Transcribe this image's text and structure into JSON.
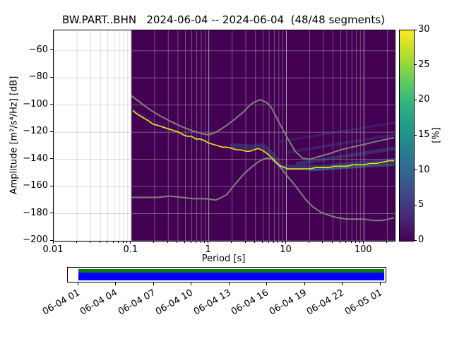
{
  "title": "BW.PART..BHN   2024-06-04 -- 2024-06-04  (48/48 segments)",
  "axes": {
    "xlabel": "Period [s]",
    "ylabel": "Amplitude [m²/s⁴/Hz] [dB]",
    "xticks": [
      {
        "value": 0.01,
        "label": "0.01"
      },
      {
        "value": 0.1,
        "label": "0.1"
      },
      {
        "value": 1,
        "label": "1"
      },
      {
        "value": 10,
        "label": "10"
      },
      {
        "value": 100,
        "label": "100"
      }
    ],
    "yticks": [
      {
        "value": -60,
        "label": "−60"
      },
      {
        "value": -80,
        "label": "−80"
      },
      {
        "value": -100,
        "label": "−100"
      },
      {
        "value": -120,
        "label": "−120"
      },
      {
        "value": -140,
        "label": "−140"
      },
      {
        "value": -160,
        "label": "−160"
      },
      {
        "value": -180,
        "label": "−180"
      },
      {
        "value": -200,
        "label": "−200"
      }
    ]
  },
  "colorbar": {
    "label": "[%]",
    "min": 0,
    "max": 30,
    "ticks": [
      0,
      5,
      10,
      15,
      20,
      25,
      30
    ],
    "colormap": "viridis",
    "stops": [
      "#440154",
      "#482878",
      "#3e4989",
      "#31688e",
      "#26828e",
      "#1f9e89",
      "#35b779",
      "#6ece58",
      "#b5de2b",
      "#fde725"
    ]
  },
  "chart_data": {
    "type": "heatmap",
    "title": "BW.PART..BHN   2024-06-04 -- 2024-06-04  (48/48 segments)",
    "xlabel": "Period [s]",
    "ylabel": "Amplitude [m²/s⁴/Hz] [dB]",
    "x_scale": "log",
    "xlim": [
      0.01,
      250
    ],
    "ylim": [
      -200,
      -45
    ],
    "probability_range_percent": [
      0,
      30
    ],
    "data_period_range": [
      0.1,
      250
    ],
    "background_color": "#440154",
    "grid": true,
    "mode_curve": {
      "name": "PSD mode (highest probability)",
      "color": "#f5e21d",
      "points": [
        [
          0.105,
          -104
        ],
        [
          0.115,
          -106
        ],
        [
          0.13,
          -108
        ],
        [
          0.15,
          -110
        ],
        [
          0.17,
          -112
        ],
        [
          0.19,
          -114
        ],
        [
          0.22,
          -115
        ],
        [
          0.25,
          -116
        ],
        [
          0.28,
          -117
        ],
        [
          0.32,
          -118
        ],
        [
          0.36,
          -119
        ],
        [
          0.41,
          -120
        ],
        [
          0.47,
          -122
        ],
        [
          0.53,
          -123
        ],
        [
          0.6,
          -123
        ],
        [
          0.68,
          -125
        ],
        [
          0.77,
          -125
        ],
        [
          0.87,
          -126
        ],
        [
          1.0,
          -128
        ],
        [
          1.15,
          -129
        ],
        [
          1.3,
          -130
        ],
        [
          1.5,
          -131
        ],
        [
          1.7,
          -131
        ],
        [
          2.0,
          -132
        ],
        [
          2.3,
          -133
        ],
        [
          2.6,
          -133
        ],
        [
          3.0,
          -134
        ],
        [
          3.4,
          -134
        ],
        [
          3.8,
          -133
        ],
        [
          4.3,
          -132
        ],
        [
          4.8,
          -133
        ],
        [
          5.4,
          -135
        ],
        [
          6.0,
          -137
        ],
        [
          6.8,
          -140
        ],
        [
          7.6,
          -143
        ],
        [
          8.5,
          -145
        ],
        [
          9.5,
          -146
        ],
        [
          10.5,
          -147
        ],
        [
          12,
          -147
        ],
        [
          14,
          -147
        ],
        [
          17,
          -147
        ],
        [
          20,
          -147
        ],
        [
          24,
          -146
        ],
        [
          29,
          -146
        ],
        [
          35,
          -146
        ],
        [
          42,
          -145
        ],
        [
          50,
          -145
        ],
        [
          60,
          -145
        ],
        [
          72,
          -144
        ],
        [
          86,
          -144
        ],
        [
          100,
          -144
        ],
        [
          120,
          -143
        ],
        [
          145,
          -143
        ],
        [
          175,
          -142
        ],
        [
          210,
          -141
        ],
        [
          245,
          -141
        ]
      ]
    },
    "noise_models": [
      {
        "name": "NHNM",
        "color": "#808080",
        "points": [
          [
            0.1,
            -93
          ],
          [
            0.13,
            -98
          ],
          [
            0.17,
            -103
          ],
          [
            0.22,
            -107
          ],
          [
            0.32,
            -112
          ],
          [
            0.45,
            -116
          ],
          [
            0.62,
            -119
          ],
          [
            0.8,
            -121
          ],
          [
            1.0,
            -122
          ],
          [
            1.24,
            -120
          ],
          [
            1.7,
            -115
          ],
          [
            2.2,
            -110
          ],
          [
            2.8,
            -105
          ],
          [
            3.4,
            -100
          ],
          [
            3.8,
            -98
          ],
          [
            4.6,
            -96
          ],
          [
            5.5,
            -98
          ],
          [
            6.3,
            -101
          ],
          [
            7.0,
            -106
          ],
          [
            7.9,
            -112
          ],
          [
            9.0,
            -118
          ],
          [
            11,
            -127
          ],
          [
            13,
            -134
          ],
          [
            16,
            -139
          ],
          [
            20,
            -140
          ],
          [
            26,
            -138
          ],
          [
            35,
            -136
          ],
          [
            50,
            -133
          ],
          [
            70,
            -131
          ],
          [
            100,
            -129
          ],
          [
            140,
            -127
          ],
          [
            200,
            -125
          ],
          [
            245,
            -124
          ]
        ]
      },
      {
        "name": "NLNM",
        "color": "#808080",
        "points": [
          [
            0.1,
            -168
          ],
          [
            0.15,
            -168
          ],
          [
            0.22,
            -168
          ],
          [
            0.32,
            -167
          ],
          [
            0.45,
            -168
          ],
          [
            0.65,
            -169
          ],
          [
            0.9,
            -169
          ],
          [
            1.24,
            -170
          ],
          [
            1.7,
            -166
          ],
          [
            2.2,
            -158
          ],
          [
            2.8,
            -151
          ],
          [
            3.5,
            -146
          ],
          [
            4.3,
            -142
          ],
          [
            5.0,
            -140
          ],
          [
            5.8,
            -139
          ],
          [
            6.5,
            -140
          ],
          [
            7.5,
            -143
          ],
          [
            9,
            -148
          ],
          [
            10.5,
            -153
          ],
          [
            12.5,
            -158
          ],
          [
            15,
            -164
          ],
          [
            18,
            -170
          ],
          [
            22,
            -175
          ],
          [
            28,
            -179
          ],
          [
            35,
            -181
          ],
          [
            45,
            -183
          ],
          [
            60,
            -184
          ],
          [
            80,
            -184
          ],
          [
            100,
            -184
          ],
          [
            130,
            -185
          ],
          [
            170,
            -185
          ],
          [
            210,
            -184
          ],
          [
            245,
            -183
          ]
        ]
      }
    ],
    "probability_streaks": [
      {
        "points": [
          [
            0.105,
            -104
          ],
          [
            0.3,
            -118
          ],
          [
            1,
            -128
          ]
        ],
        "color": "#31688e",
        "opacity": 0.2,
        "width": 5
      },
      {
        "points": [
          [
            2,
            -130
          ],
          [
            3.5,
            -131
          ],
          [
            5,
            -130
          ],
          [
            6.5,
            -136
          ],
          [
            8,
            -143
          ]
        ],
        "color": "#31688e",
        "opacity": 0.4,
        "width": 7
      },
      {
        "points": [
          [
            9,
            -146
          ],
          [
            30,
            -146
          ],
          [
            100,
            -143
          ],
          [
            245,
            -141
          ]
        ],
        "color": "#31688e",
        "opacity": 0.45,
        "width": 8
      },
      {
        "points": [
          [
            8,
            -127
          ],
          [
            245,
            -113
          ]
        ],
        "color": "#3b528b",
        "opacity": 0.35,
        "width": 3
      },
      {
        "points": [
          [
            10,
            -135
          ],
          [
            245,
            -122
          ]
        ],
        "color": "#3b528b",
        "opacity": 0.35,
        "width": 4
      },
      {
        "points": [
          [
            14,
            -143
          ],
          [
            245,
            -132
          ]
        ],
        "color": "#31688e",
        "opacity": 0.4,
        "width": 5
      },
      {
        "points": [
          [
            20,
            -148
          ],
          [
            245,
            -144
          ]
        ],
        "color": "#21918c",
        "opacity": 0.5,
        "width": 3
      }
    ]
  },
  "coverage": {
    "green_color": "#008000",
    "blue_color": "#0000ff",
    "labels": [
      "06-04 01",
      "06-04 04",
      "06-04 07",
      "06-04 10",
      "06-04 13",
      "06-04 16",
      "06-04 19",
      "06-04 22",
      "06-05 01"
    ]
  }
}
